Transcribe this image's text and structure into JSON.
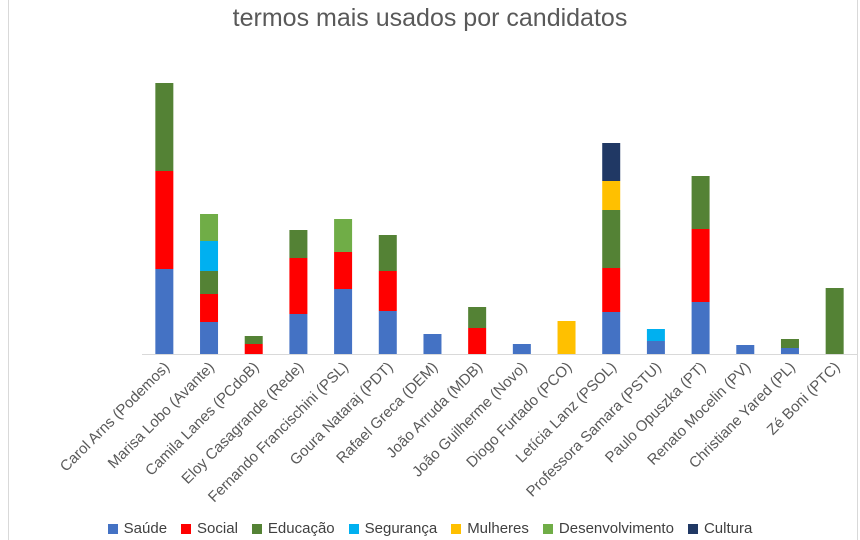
{
  "chart_data": {
    "type": "bar",
    "stacked": true,
    "title": "termos mais usados por candidatos",
    "categories": [
      "Carol Arns (Podemos)",
      "Marisa Lobo (Avante)",
      "Camila Lanes (PCdoB)",
      "Eloy Casagrande (Rede)",
      "Fernando Francischini (PSL)",
      "Goura Nataraj (PDT)",
      "Rafael Greca (DEM)",
      "João Arruda (MDB)",
      "João Guilherme (Novo)",
      "Diogo Furtado (PCO)",
      "Letícia Lanz (PSOL)",
      "Professora Samara (PSTU)",
      "Paulo Opuszka (PT)",
      "Renato Mocelin (PV)",
      "Christiane Yared (PL)",
      "Zé Boni (PTC)"
    ],
    "series": [
      {
        "name": "Saúde",
        "color": "#4472c4",
        "values": [
          85,
          32,
          0,
          40,
          65,
          43,
          20,
          0,
          10,
          0,
          42,
          13,
          52,
          9,
          6,
          0
        ]
      },
      {
        "name": "Social",
        "color": "#ff0000",
        "values": [
          98,
          28,
          10,
          56,
          37,
          40,
          0,
          26,
          0,
          0,
          44,
          0,
          73,
          0,
          0,
          0
        ]
      },
      {
        "name": "Educação",
        "color": "#548235",
        "values": [
          88,
          23,
          8,
          28,
          0,
          36,
          0,
          21,
          0,
          0,
          58,
          0,
          53,
          0,
          9,
          66
        ]
      },
      {
        "name": "Segurança",
        "color": "#00b0f0",
        "values": [
          0,
          30,
          0,
          0,
          0,
          0,
          0,
          0,
          0,
          0,
          0,
          12,
          0,
          0,
          0,
          0
        ]
      },
      {
        "name": "Mulheres",
        "color": "#ffc000",
        "values": [
          0,
          0,
          0,
          0,
          0,
          0,
          0,
          0,
          0,
          33,
          29,
          0,
          0,
          0,
          0,
          0
        ]
      },
      {
        "name": "Desenvolvimento",
        "color": "#70ad47",
        "values": [
          0,
          27,
          0,
          0,
          33,
          0,
          0,
          0,
          0,
          0,
          0,
          0,
          0,
          0,
          0,
          0
        ]
      },
      {
        "name": "Cultura",
        "color": "#203864",
        "values": [
          0,
          0,
          0,
          0,
          0,
          0,
          0,
          0,
          0,
          0,
          38,
          0,
          0,
          0,
          0,
          0
        ]
      }
    ],
    "ylim": [
      0,
      290
    ],
    "grid": false,
    "legend_position": "bottom"
  }
}
